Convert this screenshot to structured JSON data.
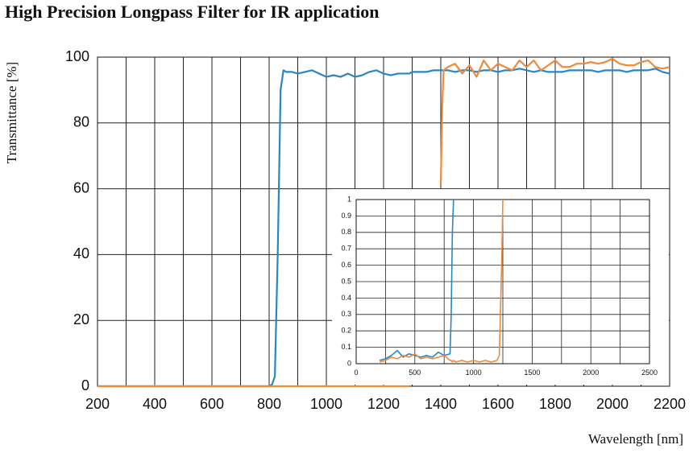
{
  "chart_data": [
    {
      "type": "line",
      "title": "High Precision Longpass Filter for IR application",
      "xlabel": "Wavelength [nm]",
      "ylabel": "Transmittance [%]",
      "x": [
        200,
        400,
        600,
        800,
        810,
        820,
        830,
        840,
        850,
        860,
        880,
        900,
        925,
        950,
        975,
        1000,
        1025,
        1050,
        1075,
        1100,
        1125,
        1150,
        1175,
        1200,
        1225,
        1250,
        1275,
        1290,
        1300,
        1325,
        1350,
        1375,
        1400,
        1405,
        1410,
        1425,
        1450,
        1475,
        1500,
        1525,
        1550,
        1575,
        1600,
        1625,
        1650,
        1675,
        1700,
        1725,
        1750,
        1775,
        1800,
        1825,
        1850,
        1875,
        1900,
        1925,
        1950,
        1975,
        2000,
        2025,
        2050,
        2075,
        2100,
        2125,
        2150,
        2175,
        2200
      ],
      "series": [
        {
          "color": "#2a86bf",
          "values": [
            0,
            0,
            0,
            0,
            0.5,
            3,
            40,
            90,
            96,
            95.5,
            95.5,
            95,
            95.5,
            96,
            95,
            94,
            94.5,
            94,
            95,
            94,
            94.5,
            95.5,
            96,
            95,
            94.5,
            95,
            95,
            95,
            95.5,
            95.5,
            95.5,
            96,
            96,
            96,
            96,
            96,
            95.5,
            96,
            96,
            95.5,
            96,
            96,
            95.5,
            96,
            96,
            96.5,
            96,
            95.5,
            96,
            95.5,
            95.5,
            95.5,
            96,
            96,
            96,
            96,
            95.5,
            96,
            96,
            96,
            95.5,
            96,
            96,
            96,
            96.5,
            95.5,
            95
          ]
        },
        {
          "color": "#ef8a3c",
          "values": [
            0,
            0,
            0,
            0,
            0,
            0,
            0,
            0,
            0,
            0,
            0,
            0,
            0,
            0,
            0,
            0,
            0,
            0,
            0,
            0,
            0,
            0,
            0,
            0,
            0,
            0,
            0,
            0,
            null,
            null,
            null,
            null,
            61,
            85,
            96,
            97,
            98,
            95,
            97.5,
            94,
            99,
            96,
            98,
            97,
            96,
            99,
            97,
            99,
            96,
            97.5,
            99,
            97,
            97,
            98,
            98,
            98.5,
            98,
            98.5,
            99.5,
            98,
            97.5,
            97.5,
            98.5,
            99,
            97,
            96.5,
            97
          ]
        }
      ],
      "xlim": [
        200,
        2200
      ],
      "xticks": [
        200,
        400,
        600,
        800,
        1000,
        1200,
        1400,
        1600,
        1800,
        2000,
        2200
      ],
      "x_minor_grid": [
        300,
        500,
        700,
        900,
        1100,
        1300,
        1500,
        1700,
        1900,
        2100
      ],
      "ylim": [
        0,
        100
      ],
      "yticks": [
        0,
        20,
        40,
        60,
        80,
        100
      ],
      "grid": true
    },
    {
      "type": "line",
      "x": [
        200,
        250,
        300,
        350,
        400,
        450,
        500,
        550,
        600,
        650,
        700,
        750,
        800,
        810,
        820,
        830,
        850,
        900,
        950,
        1000,
        1050,
        1100,
        1150,
        1200,
        1220,
        1240,
        1250
      ],
      "series": [
        {
          "color": "#2a86bf",
          "values": [
            0.02,
            0.03,
            0.05,
            0.08,
            0.04,
            0.06,
            0.05,
            0.04,
            0.05,
            0.04,
            0.07,
            0.05,
            0.06,
            0.3,
            0.8,
            1,
            null,
            null,
            null,
            null,
            null,
            null,
            null,
            null,
            null,
            null,
            null
          ]
        },
        {
          "color": "#ef8a3c",
          "values": [
            0.01,
            0.02,
            0.04,
            0.03,
            0.05,
            0.04,
            0.06,
            0.03,
            0.04,
            0.03,
            0.04,
            0.05,
            0.02,
            0.02,
            0.01,
            0.02,
            0.01,
            0.02,
            0.01,
            0.02,
            0.01,
            0.02,
            0.01,
            0.02,
            0.05,
            0.6,
            1
          ]
        }
      ],
      "xlim": [
        0,
        2500
      ],
      "xticks": [
        0,
        500,
        1000,
        1500,
        2000,
        2500
      ],
      "x_minor_grid": [
        250,
        750,
        1250,
        1750,
        2250
      ],
      "ylim": [
        0,
        1
      ],
      "yticks": [
        0,
        0.1,
        0.2,
        0.3,
        0.4,
        0.5,
        0.6,
        0.7,
        0.8,
        0.9,
        1
      ],
      "grid": true
    }
  ]
}
